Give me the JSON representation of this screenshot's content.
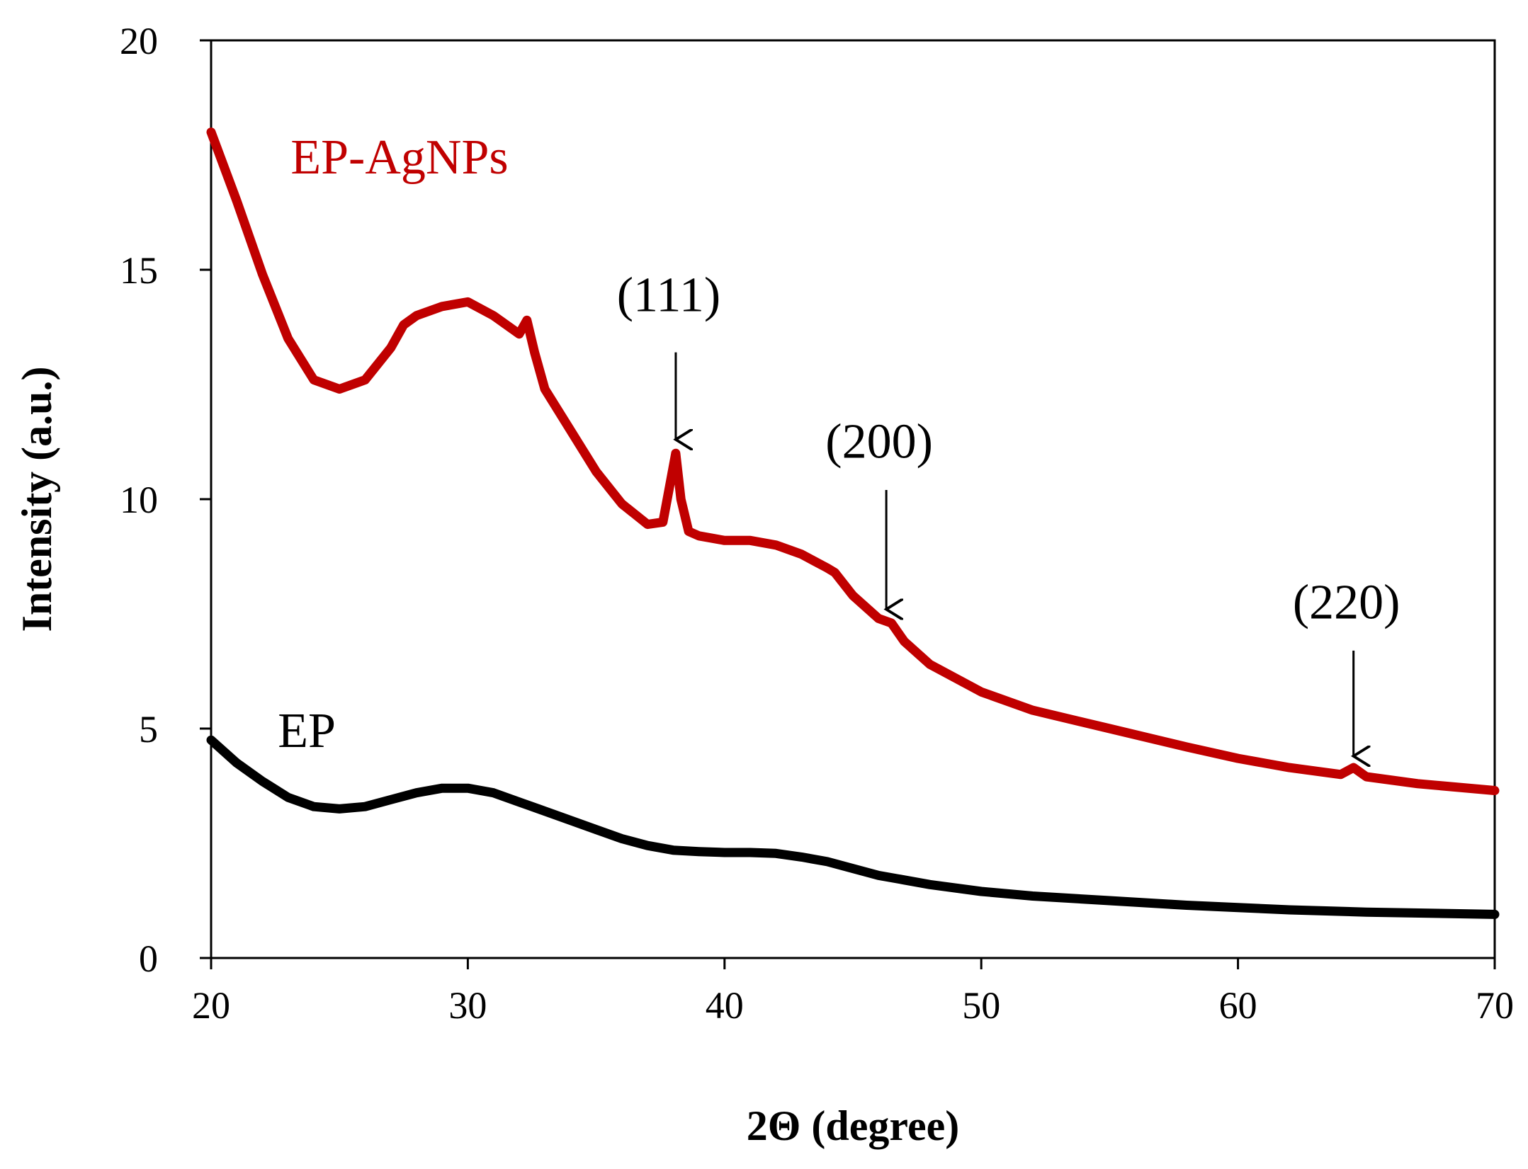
{
  "chart_data": {
    "type": "line",
    "title": "",
    "xlabel": "2Θ (degree)",
    "ylabel": "Intensity (a.u.)",
    "xlim": [
      20,
      70
    ],
    "ylim": [
      0,
      20
    ],
    "xticks": [
      20,
      30,
      40,
      50,
      60,
      70
    ],
    "yticks": [
      0,
      5,
      10,
      15,
      20
    ],
    "grid": false,
    "series": [
      {
        "name": "EP-AgNPs",
        "color": "#c00000",
        "x": [
          20,
          21,
          22,
          23,
          24,
          25,
          26,
          27,
          27.5,
          28,
          29,
          30,
          31,
          32,
          32.3,
          32.6,
          33,
          34,
          35,
          36,
          37,
          37.6,
          37.9,
          38.1,
          38.3,
          38.6,
          39,
          40,
          41,
          42,
          43,
          44,
          44.3,
          45,
          46,
          46.5,
          47,
          48,
          50,
          52,
          55,
          58,
          60,
          62,
          64,
          64.5,
          65,
          67,
          70
        ],
        "y": [
          18.0,
          16.5,
          14.9,
          13.5,
          12.6,
          12.4,
          12.6,
          13.3,
          13.8,
          14.0,
          14.2,
          14.3,
          14.0,
          13.6,
          13.9,
          13.2,
          12.4,
          11.5,
          10.6,
          9.9,
          9.45,
          9.5,
          10.4,
          11.0,
          10.0,
          9.3,
          9.2,
          9.1,
          9.1,
          9.0,
          8.8,
          8.5,
          8.4,
          7.9,
          7.4,
          7.3,
          6.9,
          6.4,
          5.8,
          5.4,
          5.0,
          4.6,
          4.35,
          4.15,
          4.0,
          4.15,
          3.95,
          3.8,
          3.65
        ]
      },
      {
        "name": "EP",
        "color": "#000000",
        "x": [
          20,
          21,
          22,
          23,
          24,
          25,
          26,
          27,
          28,
          29,
          30,
          31,
          32,
          33,
          34,
          35,
          36,
          37,
          38,
          39,
          40,
          41,
          42,
          43,
          44,
          45,
          46,
          47,
          48,
          50,
          52,
          55,
          58,
          60,
          62,
          65,
          70
        ],
        "y": [
          4.75,
          4.25,
          3.85,
          3.5,
          3.3,
          3.25,
          3.3,
          3.45,
          3.6,
          3.7,
          3.7,
          3.6,
          3.4,
          3.2,
          3.0,
          2.8,
          2.6,
          2.45,
          2.35,
          2.32,
          2.3,
          2.3,
          2.28,
          2.2,
          2.1,
          1.95,
          1.8,
          1.7,
          1.6,
          1.45,
          1.35,
          1.25,
          1.15,
          1.1,
          1.05,
          1.0,
          0.95
        ]
      }
    ],
    "annotations": [
      {
        "text": "(111)",
        "x": 38.1,
        "arrow_from_y": 13.2,
        "arrow_to_y": 11.3,
        "label_y": 14.1
      },
      {
        "text": "(200)",
        "x": 46.3,
        "arrow_from_y": 10.2,
        "arrow_to_y": 7.6,
        "label_y": 10.9
      },
      {
        "text": "(220)",
        "x": 64.5,
        "arrow_from_y": 6.7,
        "arrow_to_y": 4.4,
        "label_y": 7.4
      }
    ],
    "series_labels": [
      {
        "text": "EP-AgNPs",
        "color": "#c00000",
        "x": 23.1,
        "y": 17.1
      },
      {
        "text": "EP",
        "color": "#000000",
        "x": 22.6,
        "y": 4.6
      }
    ]
  }
}
